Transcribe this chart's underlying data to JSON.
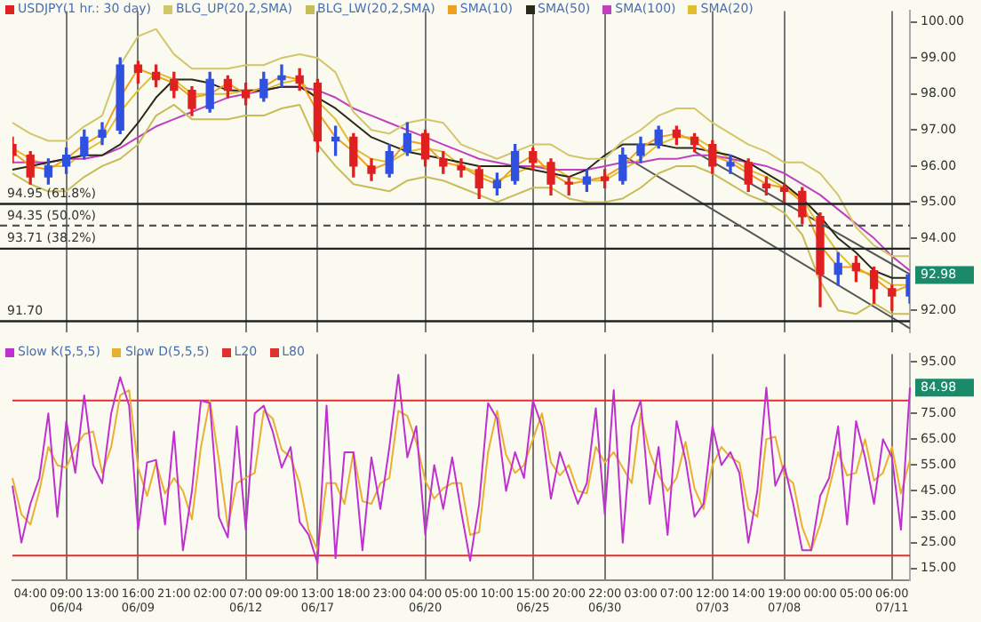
{
  "chart_data": [
    {
      "type": "candlestick",
      "categories": [
        null,
        null,
        null,
        null,
        null,
        null,
        null,
        null,
        null,
        null,
        null,
        null,
        null,
        null,
        null,
        null,
        null,
        null,
        null,
        null,
        null,
        null,
        null,
        null,
        null,
        null,
        null,
        null,
        null,
        null,
        null,
        null,
        null,
        null,
        null,
        null,
        null,
        null,
        null,
        null,
        null,
        null,
        null,
        null,
        null,
        null,
        null,
        null,
        null,
        null,
        null
      ],
      "series": [
        {
          "name": "USDJPY(1 hr.: 30 day)",
          "type": "candlestick",
          "color": "#e02020",
          "value_labels": [
            null,
            null,
            null,
            null,
            null,
            null,
            null,
            null,
            null,
            null,
            null,
            null,
            null,
            null,
            null,
            null,
            null,
            null,
            null,
            null,
            null,
            null,
            null,
            null,
            null,
            null,
            null,
            null,
            null,
            null,
            null,
            null,
            null,
            null,
            null,
            null,
            null,
            null,
            null,
            null,
            null,
            null,
            null,
            null,
            null,
            null,
            null,
            null,
            null,
            null,
            "92.98"
          ],
          "colors": [
            "#e02020",
            "#e02020",
            "#3050e0",
            "#3050e0",
            "#3050e0",
            "#3050e0",
            "#3050e0",
            "#e02020",
            "#e02020",
            "#e02020",
            "#e02020",
            "#3050e0",
            "#e02020",
            "#e02020",
            "#3050e0",
            "#3050e0",
            "#e02020",
            "#e02020",
            "#3050e0",
            "#e02020",
            "#e02020",
            "#3050e0",
            "#3050e0",
            "#e02020",
            "#e02020",
            "#e02020",
            "#e02020",
            "#3050e0",
            "#3050e0",
            "#e02020",
            "#e02020",
            "#e02020",
            "#3050e0",
            "#e02020",
            "#3050e0",
            "#3050e0",
            "#3050e0",
            "#e02020",
            "#e02020",
            "#e02020",
            "#3050e0",
            "#e02020",
            "#e02020",
            "#e02020",
            "#e02020",
            "#e02020",
            "#3050e0",
            "#e02020",
            "#e02020",
            "#e02020",
            "#3050e0"
          ],
          "ohlc": [
            [
              96.6,
              96.8,
              96.1,
              96.3
            ],
            [
              96.3,
              96.4,
              95.5,
              95.7
            ],
            [
              95.7,
              96.2,
              95.5,
              96.0
            ],
            [
              96.0,
              96.5,
              95.8,
              96.3
            ],
            [
              96.3,
              97.0,
              96.2,
              96.8
            ],
            [
              96.8,
              97.2,
              96.6,
              97.0
            ],
            [
              97.0,
              99.0,
              96.9,
              98.8
            ],
            [
              98.8,
              98.9,
              98.3,
              98.6
            ],
            [
              98.6,
              98.8,
              98.2,
              98.4
            ],
            [
              98.4,
              98.6,
              97.9,
              98.1
            ],
            [
              98.1,
              98.2,
              97.4,
              97.6
            ],
            [
              97.6,
              98.6,
              97.5,
              98.4
            ],
            [
              98.4,
              98.5,
              97.9,
              98.1
            ],
            [
              98.1,
              98.3,
              97.7,
              97.9
            ],
            [
              97.9,
              98.6,
              97.8,
              98.4
            ],
            [
              98.4,
              98.8,
              98.2,
              98.5
            ],
            [
              98.5,
              98.7,
              98.1,
              98.3
            ],
            [
              98.3,
              98.4,
              96.4,
              96.7
            ],
            [
              96.7,
              97.1,
              96.3,
              96.8
            ],
            [
              96.8,
              96.9,
              95.7,
              96.0
            ],
            [
              96.0,
              96.2,
              95.6,
              95.8
            ],
            [
              95.8,
              96.6,
              95.7,
              96.4
            ],
            [
              96.4,
              97.2,
              96.3,
              96.9
            ],
            [
              96.9,
              97.0,
              96.0,
              96.2
            ],
            [
              96.2,
              96.4,
              95.8,
              96.0
            ],
            [
              96.0,
              96.2,
              95.7,
              95.9
            ],
            [
              95.9,
              96.0,
              95.1,
              95.4
            ],
            [
              95.4,
              95.8,
              95.2,
              95.6
            ],
            [
              95.6,
              96.6,
              95.5,
              96.4
            ],
            [
              96.4,
              96.5,
              95.9,
              96.1
            ],
            [
              96.1,
              96.2,
              95.2,
              95.5
            ],
            [
              95.5,
              95.7,
              95.2,
              95.5
            ],
            [
              95.5,
              95.9,
              95.3,
              95.7
            ],
            [
              95.7,
              95.9,
              95.4,
              95.6
            ],
            [
              95.6,
              96.5,
              95.5,
              96.3
            ],
            [
              96.3,
              96.8,
              96.1,
              96.6
            ],
            [
              96.6,
              97.1,
              96.5,
              97.0
            ],
            [
              97.0,
              97.1,
              96.6,
              96.8
            ],
            [
              96.8,
              96.9,
              96.4,
              96.6
            ],
            [
              96.6,
              96.7,
              95.8,
              96.0
            ],
            [
              96.0,
              96.3,
              95.8,
              96.1
            ],
            [
              96.1,
              96.2,
              95.3,
              95.5
            ],
            [
              95.5,
              95.7,
              95.2,
              95.4
            ],
            [
              95.4,
              95.5,
              95.0,
              95.3
            ],
            [
              95.3,
              95.4,
              94.4,
              94.6
            ],
            [
              94.6,
              94.7,
              92.1,
              93.0
            ],
            [
              93.0,
              93.6,
              92.7,
              93.3
            ],
            [
              93.3,
              93.5,
              92.8,
              93.1
            ],
            [
              93.1,
              93.2,
              92.2,
              92.6
            ],
            [
              92.6,
              92.7,
              92.0,
              92.4
            ],
            [
              92.4,
              93.0,
              92.2,
              92.98
            ]
          ]
        },
        {
          "name": "BLG_UP(20,2,SMA)",
          "type": "line",
          "color": "#d2c66a",
          "values": [
            97.2,
            96.9,
            96.7,
            96.7,
            97.1,
            97.4,
            98.8,
            99.6,
            99.8,
            99.1,
            98.7,
            98.7,
            98.7,
            98.8,
            98.8,
            99.0,
            99.1,
            99.0,
            98.6,
            97.5,
            97.0,
            96.9,
            97.2,
            97.3,
            97.2,
            96.6,
            96.4,
            96.2,
            96.4,
            96.6,
            96.6,
            96.3,
            96.2,
            96.2,
            96.7,
            97.0,
            97.4,
            97.6,
            97.6,
            97.2,
            96.9,
            96.6,
            96.4,
            96.1,
            96.1,
            95.8,
            95.2,
            94.3,
            93.8,
            93.5,
            93.5
          ]
        },
        {
          "name": "BLG_LW(20,2,SMA)",
          "type": "line",
          "color": "#c8bc58",
          "values": [
            95.8,
            95.5,
            95.3,
            95.3,
            95.7,
            96.0,
            96.2,
            96.6,
            97.4,
            97.7,
            97.3,
            97.3,
            97.3,
            97.4,
            97.4,
            97.6,
            97.7,
            96.6,
            96.0,
            95.5,
            95.4,
            95.3,
            95.6,
            95.7,
            95.6,
            95.4,
            95.2,
            95.0,
            95.2,
            95.4,
            95.4,
            95.1,
            95.0,
            95.0,
            95.1,
            95.4,
            95.8,
            96.0,
            96.0,
            95.8,
            95.5,
            95.2,
            95.0,
            94.7,
            94.1,
            92.8,
            92.0,
            91.9,
            92.2,
            91.9,
            91.9
          ]
        },
        {
          "name": "SMA(10)",
          "type": "line",
          "color": "#f0a020",
          "values": [
            96.4,
            96.0,
            95.9,
            96.2,
            96.6,
            96.9,
            97.9,
            98.7,
            98.5,
            98.3,
            97.9,
            98.0,
            98.3,
            98.0,
            98.2,
            98.5,
            98.4,
            97.5,
            96.8,
            96.4,
            95.9,
            96.1,
            96.7,
            96.6,
            96.1,
            96.0,
            95.7,
            95.5,
            96.0,
            96.3,
            95.8,
            95.5,
            95.6,
            95.7,
            96.0,
            96.5,
            96.8,
            96.9,
            96.7,
            96.3,
            96.1,
            95.8,
            95.5,
            95.4,
            95.0,
            93.8,
            93.2,
            93.2,
            92.9,
            92.5,
            92.7
          ]
        },
        {
          "name": "SMA(50)",
          "type": "line",
          "color": "#2a2a1a",
          "values": [
            95.9,
            96.0,
            96.1,
            96.2,
            96.3,
            96.3,
            96.6,
            97.2,
            97.9,
            98.4,
            98.4,
            98.3,
            98.1,
            98.1,
            98.1,
            98.2,
            98.2,
            97.9,
            97.6,
            97.2,
            96.8,
            96.6,
            96.4,
            96.3,
            96.2,
            96.1,
            96.0,
            96.0,
            96.0,
            95.9,
            95.8,
            95.7,
            95.9,
            96.3,
            96.6,
            96.6,
            96.6,
            96.5,
            96.5,
            96.4,
            96.3,
            96.1,
            95.8,
            95.5,
            95.1,
            94.6,
            94.0,
            93.6,
            93.1,
            92.9,
            92.9
          ]
        },
        {
          "name": "SMA(100)",
          "type": "line",
          "color": "#c040c0",
          "values": [
            96.1,
            96.1,
            96.1,
            96.2,
            96.2,
            96.3,
            96.5,
            96.8,
            97.1,
            97.3,
            97.5,
            97.7,
            97.9,
            98.0,
            98.1,
            98.2,
            98.2,
            98.1,
            97.9,
            97.6,
            97.4,
            97.2,
            97.0,
            96.8,
            96.6,
            96.4,
            96.2,
            96.1,
            96.0,
            96.0,
            95.9,
            95.9,
            95.9,
            96.0,
            96.1,
            96.1,
            96.2,
            96.2,
            96.3,
            96.3,
            96.2,
            96.1,
            96.0,
            95.8,
            95.5,
            95.2,
            94.8,
            94.4,
            94.0,
            93.5,
            93.1
          ]
        },
        {
          "name": "SMA(20)",
          "type": "line",
          "color": "#e0c030",
          "values": [
            96.5,
            96.2,
            96.0,
            96.0,
            96.4,
            96.7,
            97.5,
            98.1,
            98.6,
            98.4,
            98.0,
            98.0,
            98.0,
            98.1,
            98.1,
            98.3,
            98.4,
            97.8,
            97.3,
            96.5,
            96.2,
            96.1,
            96.4,
            96.5,
            96.4,
            96.0,
            95.8,
            95.6,
            95.8,
            96.0,
            96.0,
            95.7,
            95.6,
            95.6,
            95.9,
            96.2,
            96.6,
            96.8,
            96.8,
            96.5,
            96.2,
            95.9,
            95.7,
            95.4,
            95.1,
            94.3,
            93.6,
            93.1,
            93.0,
            92.7,
            92.7
          ]
        },
        {
          "type": "line",
          "color": "#555555",
          "values": [
            null,
            null,
            null,
            null,
            null,
            null,
            null,
            null,
            null,
            null,
            null,
            null,
            null,
            null,
            null,
            null,
            null,
            null,
            null,
            null,
            null,
            null,
            null,
            null,
            null,
            null,
            null,
            null,
            null,
            null,
            null,
            null,
            null,
            null,
            null,
            null,
            null,
            null,
            96.4,
            null,
            null,
            null,
            null,
            null,
            null,
            null,
            null,
            null,
            null,
            null,
            93.0
          ]
        },
        {
          "type": "line",
          "color": "#555555",
          "values": [
            null,
            null,
            null,
            null,
            null,
            null,
            null,
            null,
            null,
            null,
            null,
            null,
            null,
            null,
            null,
            null,
            null,
            null,
            null,
            null,
            null,
            null,
            null,
            null,
            null,
            null,
            null,
            null,
            null,
            null,
            null,
            null,
            null,
            null,
            96.3,
            null,
            null,
            null,
            null,
            null,
            null,
            null,
            null,
            null,
            null,
            null,
            null,
            null,
            null,
            null,
            91.5
          ]
        }
      ],
      "ylim": [
        91.4,
        100.3
      ],
      "yticks": [
        {
          "value": 92,
          "label": "92.00"
        },
        {
          "value": 94,
          "label": "94.00"
        },
        {
          "value": 95,
          "label": "95.00"
        },
        {
          "value": 96,
          "label": "96.00"
        },
        {
          "value": 97,
          "label": "97.00"
        },
        {
          "value": 98,
          "label": "98.00"
        },
        {
          "value": 99,
          "label": "99.00"
        },
        {
          "value": 100,
          "label": "100.00"
        }
      ],
      "ref_lines": [
        {
          "axis": "y",
          "value": 94.95,
          "label": "94.95 (61.8%)",
          "color": "#222222"
        },
        {
          "axis": "y",
          "value": 94.35,
          "label": "94.35 (50.0%)",
          "color": "#555555",
          "line_style": "dashed"
        },
        {
          "axis": "y",
          "value": 93.71,
          "label": "93.71 (38.2%)",
          "color": "#222222"
        },
        {
          "axis": "y",
          "value": 91.7,
          "label": "91.70",
          "color": "#222222"
        }
      ],
      "grid": "x",
      "legend": "top left",
      "tick_labels": "y",
      "marker": "none"
    },
    {
      "type": "line",
      "categories": [
        null,
        null,
        "04:00",
        null,
        null,
        null,
        "09:00\n06/04",
        null,
        null,
        null,
        "13:00",
        null,
        null,
        null,
        "16:00\n06/09",
        null,
        null,
        null,
        "21:00",
        null,
        null,
        null,
        "02:00",
        null,
        null,
        null,
        "07:00\n06/12",
        null,
        null,
        null,
        "09:00",
        null,
        null,
        null,
        "13:00\n06/17",
        null,
        null,
        null,
        "18:00",
        null,
        null,
        null,
        "23:00",
        null,
        null,
        null,
        "04:00\n06/20",
        null,
        null,
        null,
        "05:00",
        null,
        null,
        null,
        "10:00",
        null,
        null,
        null,
        "15:00\n06/25",
        null,
        null,
        null,
        "20:00",
        null,
        null,
        null,
        "22:00\n06/30",
        null,
        null,
        null,
        "03:00",
        null,
        null,
        null,
        "07:00",
        null,
        null,
        null,
        "12:00\n07/03",
        null,
        null,
        null,
        "14:00",
        null,
        null,
        null,
        "19:00\n07/08",
        null,
        null,
        null,
        "00:00",
        null,
        null,
        null,
        "05:00",
        null,
        null,
        null,
        "06:00\n07/11",
        null,
        null
      ],
      "series": [
        {
          "name": "Slow K(5,5,5)",
          "color": "#c030d0",
          "value_labels": [
            null,
            null,
            null,
            null,
            null,
            null,
            null,
            null,
            null,
            null,
            null,
            null,
            null,
            null,
            null,
            null,
            null,
            null,
            null,
            null,
            null,
            null,
            null,
            null,
            null,
            null,
            null,
            null,
            null,
            null,
            null,
            null,
            null,
            null,
            null,
            null,
            null,
            null,
            null,
            null,
            null,
            null,
            null,
            null,
            null,
            null,
            null,
            null,
            null,
            null,
            null,
            null,
            null,
            null,
            null,
            null,
            null,
            null,
            null,
            null,
            null,
            null,
            null,
            null,
            null,
            null,
            null,
            null,
            null,
            null,
            null,
            null,
            null,
            null,
            null,
            null,
            null,
            null,
            null,
            null,
            null,
            null,
            null,
            null,
            null,
            null,
            null,
            null,
            null,
            null,
            null,
            null,
            null,
            null,
            null,
            null,
            null,
            null,
            null,
            null,
            "84.98"
          ],
          "values": [
            47,
            25,
            40,
            50,
            75,
            35,
            72,
            52,
            82,
            55,
            48,
            75,
            89,
            78,
            30,
            56,
            57,
            32,
            68,
            22,
            45,
            80,
            79,
            35,
            27,
            70,
            30,
            75,
            78,
            68,
            54,
            62,
            33,
            28,
            17,
            78,
            19,
            60,
            60,
            22,
            58,
            38,
            62,
            90,
            58,
            70,
            28,
            55,
            38,
            58,
            37,
            18,
            40,
            79,
            73,
            45,
            60,
            50,
            80,
            70,
            42,
            60,
            50,
            40,
            48,
            77,
            36,
            84,
            25,
            70,
            80,
            40,
            62,
            28,
            72,
            57,
            35,
            40,
            70,
            55,
            60,
            52,
            25,
            45,
            85,
            47,
            55,
            40,
            22,
            22,
            43,
            50,
            70,
            32,
            72,
            58,
            40,
            65,
            58,
            30,
            84.98
          ]
        },
        {
          "name": "Slow D(5,5,5)",
          "color": "#e8b030",
          "values": [
            50,
            36,
            32,
            45,
            62,
            55,
            54,
            62,
            67,
            68,
            52,
            62,
            82,
            84,
            54,
            43,
            56,
            44,
            50,
            45,
            34,
            62,
            80,
            57,
            31,
            48,
            50,
            52,
            76,
            73,
            61,
            58,
            48,
            30,
            22,
            48,
            48,
            40,
            60,
            41,
            40,
            48,
            50,
            76,
            74,
            64,
            49,
            42,
            46,
            48,
            48,
            28,
            29,
            60,
            76,
            59,
            52,
            55,
            65,
            75,
            56,
            51,
            55,
            45,
            44,
            62,
            56,
            60,
            54,
            48,
            75,
            60,
            51,
            45,
            50,
            64,
            46,
            38,
            55,
            62,
            58,
            56,
            38,
            35,
            65,
            66,
            51,
            48,
            31,
            22,
            32,
            46,
            60,
            51,
            52,
            65,
            49,
            52,
            62,
            44,
            57
          ]
        },
        {
          "name": "L20",
          "color": "#e03030",
          "values": [
            20,
            20,
            20,
            20,
            20,
            20,
            20,
            20,
            20,
            20,
            20,
            20,
            20,
            20,
            20,
            20,
            20,
            20,
            20,
            20,
            20,
            20,
            20,
            20,
            20,
            20,
            20,
            20,
            20,
            20,
            20,
            20,
            20,
            20,
            20,
            20,
            20,
            20,
            20,
            20,
            20,
            20,
            20,
            20,
            20,
            20,
            20,
            20,
            20,
            20,
            20,
            20,
            20,
            20,
            20,
            20,
            20,
            20,
            20,
            20,
            20,
            20,
            20,
            20,
            20,
            20,
            20,
            20,
            20,
            20,
            20,
            20,
            20,
            20,
            20,
            20,
            20,
            20,
            20,
            20,
            20,
            20,
            20,
            20,
            20,
            20,
            20,
            20,
            20,
            20,
            20,
            20,
            20,
            20,
            20,
            20,
            20,
            20,
            20,
            20,
            20
          ]
        },
        {
          "name": "L80",
          "color": "#e03030",
          "values": [
            80,
            80,
            80,
            80,
            80,
            80,
            80,
            80,
            80,
            80,
            80,
            80,
            80,
            80,
            80,
            80,
            80,
            80,
            80,
            80,
            80,
            80,
            80,
            80,
            80,
            80,
            80,
            80,
            80,
            80,
            80,
            80,
            80,
            80,
            80,
            80,
            80,
            80,
            80,
            80,
            80,
            80,
            80,
            80,
            80,
            80,
            80,
            80,
            80,
            80,
            80,
            80,
            80,
            80,
            80,
            80,
            80,
            80,
            80,
            80,
            80,
            80,
            80,
            80,
            80,
            80,
            80,
            80,
            80,
            80,
            80,
            80,
            80,
            80,
            80,
            80,
            80,
            80,
            80,
            80,
            80,
            80,
            80,
            80,
            80,
            80,
            80,
            80,
            80,
            80,
            80,
            80,
            80,
            80,
            80,
            80,
            80,
            80,
            80,
            80,
            80
          ]
        }
      ],
      "ylim": [
        10.5,
        98
      ],
      "yticks": [
        {
          "value": 15,
          "label": "15.00"
        },
        {
          "value": 25,
          "label": "25.00"
        },
        {
          "value": 35,
          "label": "35.00"
        },
        {
          "value": 45,
          "label": "45.00"
        },
        {
          "value": 55,
          "label": "55.00"
        },
        {
          "value": 65,
          "label": "65.00"
        },
        {
          "value": 75,
          "label": "75.00"
        },
        {
          "value": 95,
          "label": "95.00"
        }
      ],
      "grid": "x",
      "legend": "top left",
      "marker": "none"
    }
  ]
}
